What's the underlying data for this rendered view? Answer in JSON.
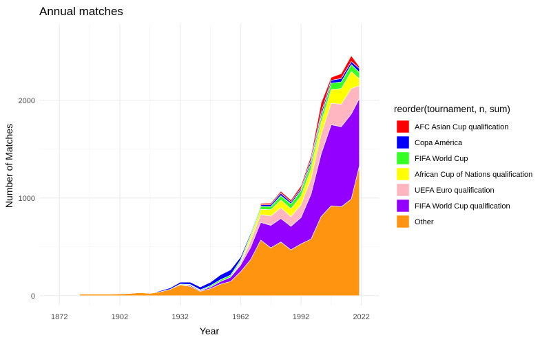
{
  "chart_data": {
    "type": "area",
    "title": "Annual matches",
    "xlabel": "Year",
    "ylabel": "Number of Matches",
    "legend_title": "reorder(tournament, n, sum)",
    "legend_position": "right",
    "grid": true,
    "xlim": [
      1862,
      2031
    ],
    "ylim": [
      -100,
      2780
    ],
    "x_ticks": [
      1872,
      1902,
      1932,
      1962,
      1992,
      2022
    ],
    "y_ticks": [
      0,
      1000,
      2000
    ],
    "x": [
      1882,
      1887,
      1892,
      1897,
      1902,
      1907,
      1912,
      1917,
      1922,
      1927,
      1932,
      1937,
      1942,
      1947,
      1952,
      1957,
      1962,
      1967,
      1972,
      1977,
      1982,
      1987,
      1992,
      1997,
      2002,
      2007,
      2012,
      2017,
      2021
    ],
    "series": [
      {
        "name": "Other",
        "color": "#FF9411",
        "values": [
          18,
          18,
          18,
          18,
          19,
          24,
          32,
          25,
          40,
          65,
          112,
          95,
          45,
          72,
          118,
          145,
          245,
          370,
          570,
          490,
          550,
          470,
          530,
          580,
          810,
          920,
          910,
          990,
          1330
        ]
      },
      {
        "name": "FIFA World Cup qualification",
        "color": "#9300FF",
        "values": [
          0,
          0,
          0,
          0,
          0,
          0,
          0,
          0,
          0,
          0,
          0,
          12,
          8,
          16,
          28,
          45,
          68,
          125,
          180,
          230,
          240,
          240,
          270,
          460,
          640,
          830,
          820,
          870,
          690
        ]
      },
      {
        "name": "UEFA Euro qualification",
        "color": "#FFB6C1",
        "values": [
          0,
          0,
          0,
          0,
          0,
          0,
          0,
          0,
          0,
          0,
          0,
          0,
          0,
          0,
          0,
          0,
          22,
          65,
          80,
          95,
          110,
          100,
          130,
          160,
          200,
          220,
          230,
          260,
          130
        ]
      },
      {
        "name": "African Cup of Nations qualification",
        "color": "#FFFF00",
        "values": [
          0,
          0,
          0,
          0,
          0,
          0,
          0,
          0,
          0,
          0,
          0,
          0,
          0,
          0,
          0,
          0,
          10,
          38,
          55,
          65,
          80,
          80,
          90,
          100,
          120,
          140,
          160,
          175,
          70
        ]
      },
      {
        "name": "FIFA World Cup",
        "color": "#33FF22",
        "values": [
          0,
          0,
          0,
          0,
          0,
          0,
          0,
          0,
          0,
          0,
          7,
          8,
          7,
          15,
          18,
          20,
          22,
          25,
          30,
          32,
          45,
          50,
          56,
          60,
          62,
          65,
          68,
          72,
          65
        ]
      },
      {
        "name": "Copa América",
        "color": "#0000FF",
        "values": [
          0,
          0,
          0,
          0,
          0,
          0,
          0,
          0,
          10,
          15,
          20,
          25,
          30,
          35,
          50,
          55,
          30,
          20,
          15,
          20,
          25,
          20,
          20,
          35,
          40,
          30,
          35,
          30,
          40
        ]
      },
      {
        "name": "AFC Asian Cup qualification",
        "color": "#FF0000",
        "values": [
          0,
          0,
          0,
          0,
          0,
          0,
          0,
          0,
          0,
          0,
          0,
          0,
          0,
          0,
          0,
          0,
          0,
          0,
          15,
          15,
          20,
          20,
          30,
          40,
          100,
          30,
          50,
          60,
          20
        ]
      }
    ]
  }
}
